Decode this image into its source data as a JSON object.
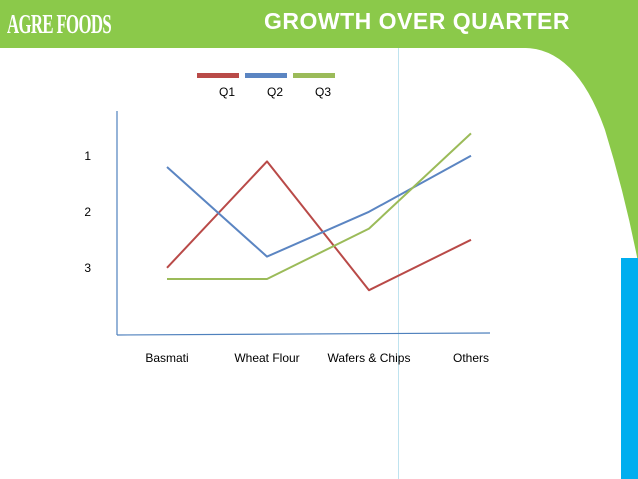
{
  "brand": {
    "logo": "AGRE FOODS"
  },
  "slide": {
    "title": "GROWTH OVER QUARTER"
  },
  "colors": {
    "banner": "#8bc94a",
    "accent_blue": "#00aeef",
    "q1": "#b94a48",
    "q2": "#5b85c2",
    "q3": "#9bbb59"
  },
  "chart_data": {
    "type": "line",
    "title": "",
    "xlabel": "",
    "ylabel": "",
    "categories": [
      "Basmati",
      "Wheat Flour",
      "Wafers & Chips",
      "Others"
    ],
    "y_ticks": [
      "1",
      "2",
      "3"
    ],
    "ylim": [
      0.2,
      4.2
    ],
    "y_inverted": true,
    "legend_position": "top",
    "series": [
      {
        "name": "Q1",
        "color": "#b94a48",
        "values": [
          3.0,
          1.1,
          3.4,
          2.5
        ]
      },
      {
        "name": "Q2",
        "color": "#5b85c2",
        "values": [
          1.2,
          2.8,
          2.0,
          1.0
        ]
      },
      {
        "name": "Q3",
        "color": "#9bbb59",
        "values": [
          3.2,
          3.2,
          2.3,
          0.6
        ]
      }
    ]
  }
}
